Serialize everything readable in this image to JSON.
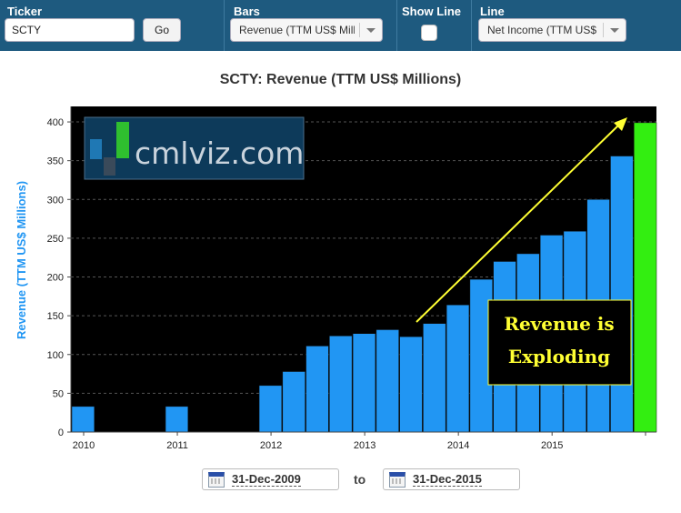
{
  "toolbar": {
    "ticker_label": "Ticker",
    "ticker_value": "SCTY",
    "go_label": "Go",
    "bars_label": "Bars",
    "bars_value": "Revenue (TTM US$ Millions)",
    "show_line_label": "Show Line",
    "line_label": "Line",
    "line_value": "Net Income (TTM US$ Millions)",
    "show_line_checked": false
  },
  "chart": {
    "title": "SCTY: Revenue (TTM US$ Millions)",
    "watermark": "cmlviz.com",
    "annotation_line1": "Revenue is",
    "annotation_line2": "Exploding"
  },
  "chart_data": {
    "type": "bar",
    "title": "SCTY: Revenue (TTM US$ Millions)",
    "ylabel": "Revenue (TTM US$ Millions)",
    "xlabel": "",
    "ylim": [
      0,
      420
    ],
    "yticks": [
      0,
      50,
      100,
      150,
      200,
      250,
      300,
      350,
      400
    ],
    "xtick_labels": [
      "2010",
      "2011",
      "2012",
      "2013",
      "2014",
      "2015"
    ],
    "grid": true,
    "values": [
      33,
      null,
      null,
      null,
      33,
      null,
      null,
      null,
      60,
      78,
      111,
      124,
      127,
      132,
      123,
      140,
      164,
      197,
      220,
      230,
      254,
      259,
      300,
      356,
      399
    ],
    "highlight_last": true,
    "colors": {
      "bar": "#2196f3",
      "highlight": "#33ee11",
      "background": "#000000"
    }
  },
  "date_range": {
    "start": "31-Dec-2009",
    "to_label": "to",
    "end": "31-Dec-2015"
  }
}
